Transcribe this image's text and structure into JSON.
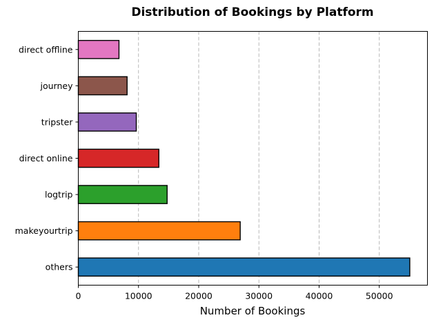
{
  "chart_data": {
    "type": "bar",
    "orientation": "horizontal",
    "title": "Distribution of Bookings by Platform",
    "xlabel": "Number of Bookings",
    "ylabel": "",
    "categories": [
      "others",
      "makeyourtrip",
      "logtrip",
      "direct online",
      "tripster",
      "journey",
      "direct offline"
    ],
    "values": [
      55066,
      26898,
      14756,
      13379,
      9630,
      8106,
      6755
    ],
    "colors": [
      "#1f77b4",
      "#ff7f0e",
      "#2ca02c",
      "#d62728",
      "#9467bd",
      "#8c564b",
      "#e377c2"
    ],
    "xlim": [
      0,
      58000
    ],
    "xticks": [
      0,
      10000,
      20000,
      30000,
      40000,
      50000
    ],
    "grid": "x-dashed",
    "legend": "none"
  }
}
